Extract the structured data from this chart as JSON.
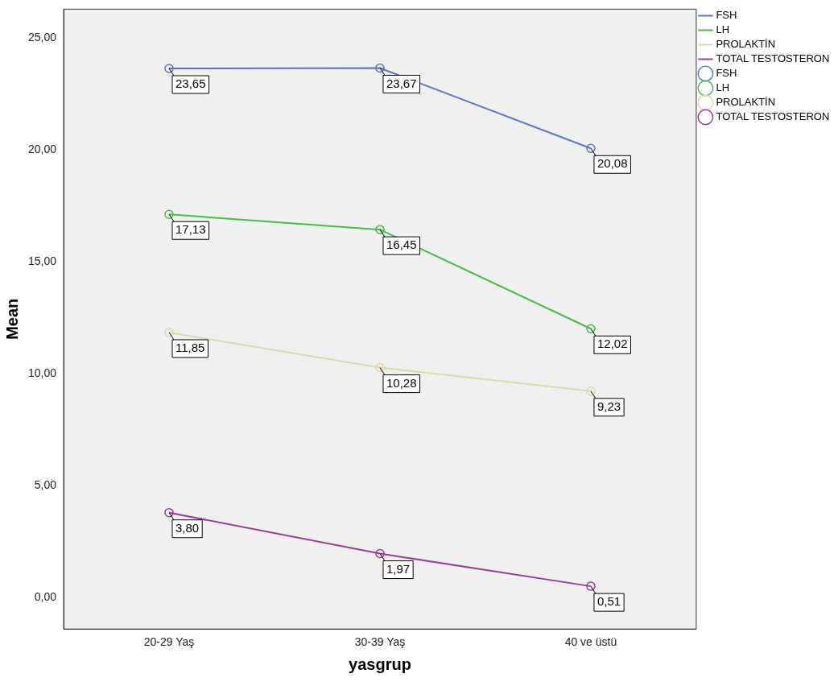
{
  "chart_data": {
    "type": "line",
    "xlabel": "yasgrup",
    "ylabel": "Mean",
    "categories": [
      "20-29 Yaş",
      "30-39 Yaş",
      "40 ve üstü"
    ],
    "series": [
      {
        "name": "FSH",
        "color": "#5a74cc",
        "values": [
          23.65,
          23.67,
          20.08
        ],
        "value_labels": [
          "23,65",
          "23,67",
          "20,08"
        ]
      },
      {
        "name": "LH",
        "color": "#40c040",
        "values": [
          17.13,
          16.45,
          12.02
        ],
        "value_labels": [
          "17,13",
          "16,45",
          "12,02"
        ]
      },
      {
        "name": "PROLAKTİN",
        "color": "#ddd9a8",
        "values": [
          11.85,
          10.28,
          9.23
        ],
        "value_labels": [
          "11,85",
          "10,28",
          "9,23"
        ]
      },
      {
        "name": "TOTAL TESTOSTERON",
        "color": "#9a3c98",
        "values": [
          3.8,
          1.97,
          0.51
        ],
        "value_labels": [
          "3,80",
          "1,97",
          "0,51"
        ]
      }
    ],
    "ylim": [
      -1.4,
      26.3
    ],
    "yticks": [
      {
        "value": 0,
        "label": "0,00"
      },
      {
        "value": 5,
        "label": "5,00"
      },
      {
        "value": 10,
        "label": "10,00"
      },
      {
        "value": 15,
        "label": "15,00"
      },
      {
        "value": 20,
        "label": "20,00"
      },
      {
        "value": 25,
        "label": "25,00"
      }
    ],
    "grid": false,
    "legend": "top right",
    "marker": "circle",
    "line_style": "solid"
  }
}
